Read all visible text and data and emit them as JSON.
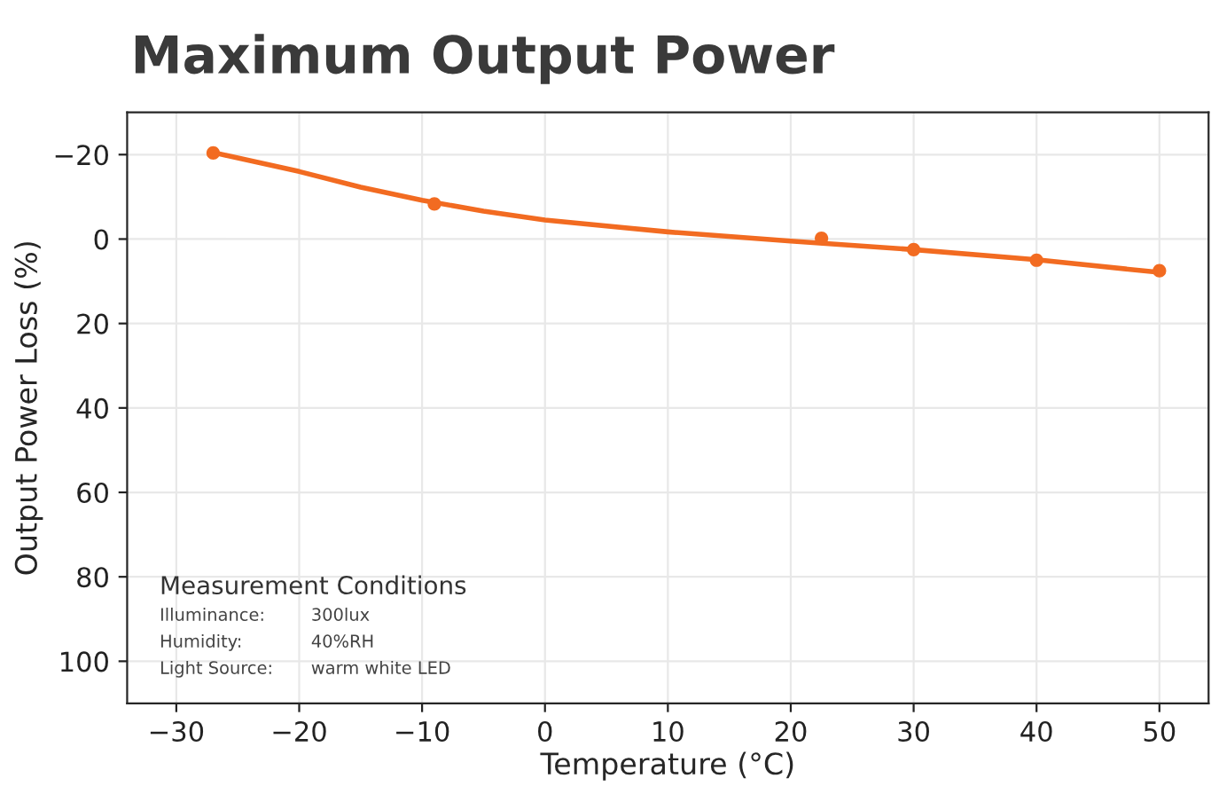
{
  "chart_data": {
    "type": "scatter",
    "title": "Maximum Output Power",
    "xlabel": "Temperature (°C)",
    "ylabel": "Output Power Loss (%)",
    "xlim": [
      -34,
      54
    ],
    "xticks": [
      {
        "value": -30,
        "label": "−30"
      },
      {
        "value": -20,
        "label": "−20"
      },
      {
        "value": -10,
        "label": "−10"
      },
      0,
      10,
      20,
      30,
      40,
      50
    ],
    "ylim": [
      110,
      -30
    ],
    "yticks": [
      {
        "value": -20,
        "label": "−20"
      },
      0,
      20,
      40,
      60,
      80,
      100
    ],
    "grid": true,
    "series": [
      {
        "color": "#f26b21",
        "marker": "circle",
        "x": [
          -27,
          -9,
          22.5,
          30,
          40,
          50
        ],
        "values": [
          -20.4,
          -8.3,
          -0.2,
          2.5,
          5,
          7.5
        ]
      },
      {
        "type": "line",
        "color": "#f26b21",
        "marker": "none",
        "line_style": "solid",
        "x": [
          -27,
          -20,
          -15,
          -10,
          -5,
          0,
          10,
          20,
          30,
          40,
          50
        ],
        "values": [
          -20.5,
          -16,
          -12.3,
          -9.2,
          -6.6,
          -4.5,
          -1.7,
          0.5,
          2.5,
          4.9,
          7.9
        ]
      }
    ],
    "annotations": [
      "Measurement Conditions",
      "Illuminance:",
      "300lux",
      "Humidity:",
      "40%RH",
      "Light Source:",
      "warm white LED"
    ]
  }
}
